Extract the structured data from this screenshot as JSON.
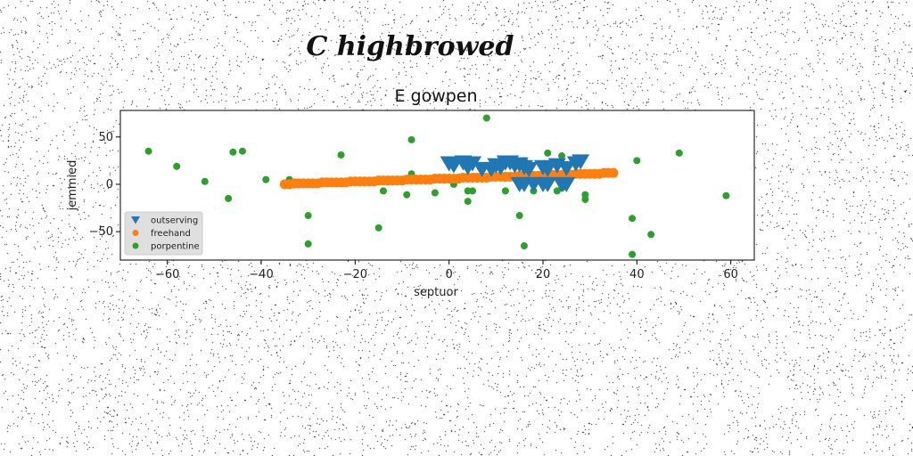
{
  "chart_data": {
    "type": "scatter",
    "suptitle": "C highbrowed",
    "title": "E gowpen",
    "xlabel": "septuor",
    "ylabel": "jemmied",
    "xlim": [
      -70,
      65
    ],
    "ylim": [
      -80,
      78
    ],
    "xticks": [
      -60,
      -40,
      -20,
      0,
      20,
      40,
      60
    ],
    "yticks": [
      -50,
      0,
      50
    ],
    "legend_position": "lower-left",
    "series": [
      {
        "name": "outserving",
        "marker": "triangle-down",
        "color": "#1f77b4",
        "points": [
          [
            0,
            22
          ],
          [
            1,
            20
          ],
          [
            3,
            23
          ],
          [
            5,
            22
          ],
          [
            4,
            18
          ],
          [
            7,
            16
          ],
          [
            9,
            16
          ],
          [
            10,
            20
          ],
          [
            11,
            18
          ],
          [
            12,
            23
          ],
          [
            13,
            23
          ],
          [
            14,
            20
          ],
          [
            15,
            21
          ],
          [
            16,
            18
          ],
          [
            17,
            16
          ],
          [
            20,
            18
          ],
          [
            21,
            16
          ],
          [
            23,
            20
          ],
          [
            25,
            17
          ],
          [
            27,
            22
          ],
          [
            28,
            24
          ],
          [
            20,
            0
          ],
          [
            21,
            0
          ],
          [
            18,
            0
          ],
          [
            16,
            0
          ],
          [
            15,
            0
          ],
          [
            24,
            0
          ],
          [
            25,
            0
          ]
        ]
      },
      {
        "name": "freehand",
        "marker": "circle",
        "color": "#ff7f0e",
        "points": [
          [
            -35,
            0
          ],
          [
            -34,
            0
          ],
          [
            -33,
            1
          ],
          [
            -32,
            1
          ],
          [
            -31,
            1
          ],
          [
            -30,
            1
          ],
          [
            -29,
            1
          ],
          [
            -28,
            1
          ],
          [
            -27,
            2
          ],
          [
            -26,
            2
          ],
          [
            -25,
            2
          ],
          [
            -24,
            2
          ],
          [
            -23,
            2
          ],
          [
            -22,
            2
          ],
          [
            -21,
            3
          ],
          [
            -20,
            3
          ],
          [
            -19,
            3
          ],
          [
            -18,
            3
          ],
          [
            -17,
            3
          ],
          [
            -16,
            3
          ],
          [
            -15,
            4
          ],
          [
            -14,
            4
          ],
          [
            -13,
            4
          ],
          [
            -12,
            4
          ],
          [
            -11,
            4
          ],
          [
            -10,
            4
          ],
          [
            -9,
            5
          ],
          [
            -8,
            5
          ],
          [
            -7,
            5
          ],
          [
            -6,
            5
          ],
          [
            -5,
            5
          ],
          [
            -4,
            5
          ],
          [
            -3,
            6
          ],
          [
            -2,
            6
          ],
          [
            -1,
            6
          ],
          [
            0,
            6
          ],
          [
            1,
            6
          ],
          [
            2,
            6
          ],
          [
            3,
            7
          ],
          [
            4,
            7
          ],
          [
            5,
            7
          ],
          [
            6,
            7
          ],
          [
            7,
            7
          ],
          [
            8,
            7
          ],
          [
            9,
            8
          ],
          [
            10,
            8
          ],
          [
            11,
            8
          ],
          [
            12,
            8
          ],
          [
            13,
            8
          ],
          [
            14,
            8
          ],
          [
            15,
            9
          ],
          [
            16,
            9
          ],
          [
            17,
            9
          ],
          [
            18,
            9
          ],
          [
            19,
            9
          ],
          [
            20,
            9
          ],
          [
            21,
            10
          ],
          [
            22,
            10
          ],
          [
            23,
            10
          ],
          [
            24,
            10
          ],
          [
            25,
            10
          ],
          [
            26,
            10
          ],
          [
            27,
            11
          ],
          [
            28,
            11
          ],
          [
            29,
            11
          ],
          [
            30,
            11
          ],
          [
            31,
            11
          ],
          [
            32,
            11
          ],
          [
            33,
            12
          ],
          [
            34,
            12
          ],
          [
            35,
            12
          ]
        ]
      },
      {
        "name": "porpentine",
        "marker": "circle",
        "color": "#2ca02c",
        "points": [
          [
            -64,
            35
          ],
          [
            -58,
            19
          ],
          [
            -52,
            3
          ],
          [
            -47,
            -15
          ],
          [
            -46,
            34
          ],
          [
            -44,
            35
          ],
          [
            -39,
            5
          ],
          [
            -34,
            5
          ],
          [
            -30,
            -63
          ],
          [
            -30,
            -33
          ],
          [
            -23,
            31
          ],
          [
            -15,
            -46
          ],
          [
            -14,
            -7
          ],
          [
            -9,
            -11
          ],
          [
            -8,
            47
          ],
          [
            -8,
            11
          ],
          [
            -3,
            -9
          ],
          [
            1,
            0
          ],
          [
            4,
            -7
          ],
          [
            4,
            -18
          ],
          [
            5,
            -7
          ],
          [
            8,
            70
          ],
          [
            12,
            -7
          ],
          [
            13,
            22
          ],
          [
            14,
            22
          ],
          [
            15,
            -33
          ],
          [
            16,
            -65
          ],
          [
            16,
            25
          ],
          [
            18,
            -7
          ],
          [
            21,
            33
          ],
          [
            23,
            -7
          ],
          [
            24,
            30
          ],
          [
            24,
            -4
          ],
          [
            29,
            -11
          ],
          [
            29,
            -16
          ],
          [
            39,
            -74
          ],
          [
            39,
            -36
          ],
          [
            40,
            25
          ],
          [
            43,
            -53
          ],
          [
            49,
            33
          ],
          [
            59,
            -12
          ]
        ]
      }
    ]
  }
}
